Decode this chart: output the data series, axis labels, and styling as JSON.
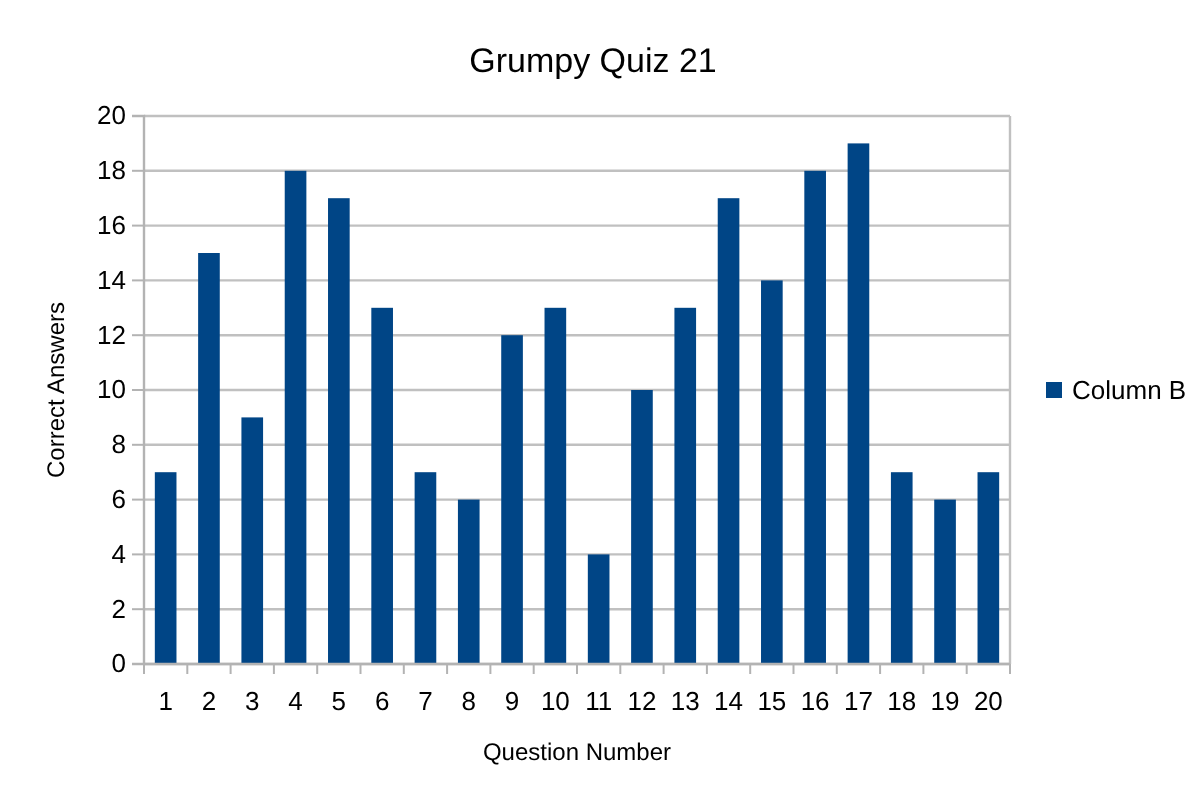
{
  "chart_data": {
    "type": "bar",
    "title": "Grumpy Quiz 21",
    "xlabel": "Question Number",
    "ylabel": "Correct Answers",
    "categories": [
      "1",
      "2",
      "3",
      "4",
      "5",
      "6",
      "7",
      "8",
      "9",
      "10",
      "11",
      "12",
      "13",
      "14",
      "15",
      "16",
      "17",
      "18",
      "19",
      "20"
    ],
    "series": [
      {
        "name": "Column B",
        "color": "#004586",
        "values": [
          7,
          15,
          9,
          18,
          17,
          13,
          7,
          6,
          12,
          13,
          4,
          10,
          13,
          17,
          14,
          18,
          19,
          7,
          6,
          7
        ]
      }
    ],
    "ylim": [
      0,
      20
    ],
    "yticks": [
      0,
      2,
      4,
      6,
      8,
      10,
      12,
      14,
      16,
      18,
      20
    ],
    "grid": "y",
    "legend": "right"
  }
}
